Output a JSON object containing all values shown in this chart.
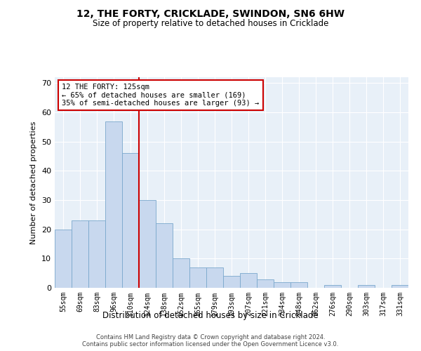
{
  "title": "12, THE FORTY, CRICKLADE, SWINDON, SN6 6HW",
  "subtitle": "Size of property relative to detached houses in Cricklade",
  "xlabel": "Distribution of detached houses by size in Cricklade",
  "ylabel": "Number of detached properties",
  "categories": [
    "55sqm",
    "69sqm",
    "83sqm",
    "96sqm",
    "110sqm",
    "124sqm",
    "138sqm",
    "152sqm",
    "165sqm",
    "179sqm",
    "193sqm",
    "207sqm",
    "221sqm",
    "234sqm",
    "248sqm",
    "262sqm",
    "276sqm",
    "290sqm",
    "303sqm",
    "317sqm",
    "331sqm"
  ],
  "values": [
    20,
    23,
    23,
    57,
    46,
    30,
    22,
    10,
    7,
    7,
    4,
    5,
    3,
    2,
    2,
    0,
    1,
    0,
    1,
    0,
    1
  ],
  "bar_color": "#c8d8ee",
  "bar_edge_color": "#7aa8cc",
  "ref_line_color": "#cc0000",
  "ref_line_index": 4.5,
  "annotation_text": "12 THE FORTY: 125sqm\n← 65% of detached houses are smaller (169)\n35% of semi-detached houses are larger (93) →",
  "annotation_box_color": "#cc0000",
  "ylim": [
    0,
    72
  ],
  "yticks": [
    0,
    10,
    20,
    30,
    40,
    50,
    60,
    70
  ],
  "background_color": "#e8f0f8",
  "grid_color": "#ffffff",
  "footer_line1": "Contains HM Land Registry data © Crown copyright and database right 2024.",
  "footer_line2": "Contains public sector information licensed under the Open Government Licence v3.0."
}
